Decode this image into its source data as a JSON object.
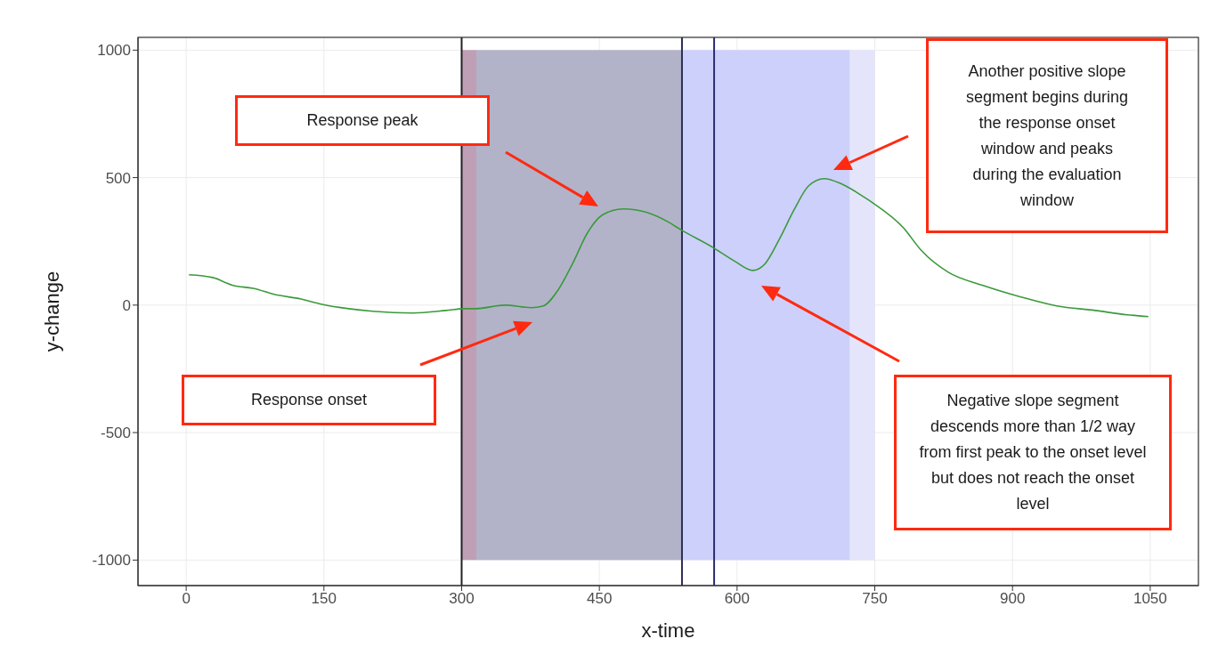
{
  "chart_data": {
    "type": "line",
    "xlabel": "x-time",
    "ylabel": "y-change",
    "x": [
      3,
      29,
      51,
      73,
      96,
      125,
      148,
      177,
      203,
      247,
      283,
      302,
      315,
      347,
      376,
      389,
      405,
      421,
      437,
      453,
      476,
      502,
      524,
      540,
      572,
      598,
      617,
      630,
      646,
      662,
      678,
      695,
      714,
      739,
      749,
      781,
      801,
      830,
      868,
      910,
      948,
      990,
      1025,
      1048
    ],
    "values": [
      119,
      108,
      77,
      66,
      42,
      24,
      3,
      -14,
      -24,
      -31,
      -21,
      -14,
      -14,
      0,
      -10,
      -3,
      59,
      164,
      283,
      353,
      377,
      363,
      328,
      293,
      230,
      171,
      136,
      160,
      258,
      373,
      468,
      496,
      475,
      422,
      398,
      304,
      213,
      129,
      77,
      31,
      -3,
      -21,
      -38,
      -45
    ],
    "color": "#3a9a3a",
    "xlim": [
      -52.5,
      1102.5
    ],
    "ylim": [
      -1100,
      1050
    ],
    "xticks": [
      0,
      150,
      300,
      450,
      600,
      750,
      900,
      1050
    ],
    "yticks": [
      -1000,
      -500,
      0,
      500,
      1000
    ],
    "grid": true,
    "bands": [
      {
        "axis": "x",
        "from": 300,
        "to": 316,
        "color": "#bf9fb5"
      },
      {
        "axis": "x",
        "from": 316,
        "to": 540,
        "color": "#b2b3c9"
      },
      {
        "axis": "x",
        "from": 540,
        "to": 723,
        "color": "#cdd0fb"
      },
      {
        "axis": "x",
        "from": 723,
        "to": 750,
        "color": "#e4e5fb"
      }
    ],
    "ref_lines": [
      {
        "axis": "x",
        "value": 300,
        "color": "#222222"
      },
      {
        "axis": "x",
        "value": 540,
        "color": "#2b2d55"
      },
      {
        "axis": "x",
        "value": 575,
        "color": "#2b2d6e"
      }
    ],
    "annotations": [
      "Response peak",
      "Response onset",
      "Another positive slope segment begins during the response onset window and peaks during the evaluation window",
      "Negative slope segment descends more than 1/2 way from first peak to the onset level but does not reach the onset level"
    ]
  }
}
